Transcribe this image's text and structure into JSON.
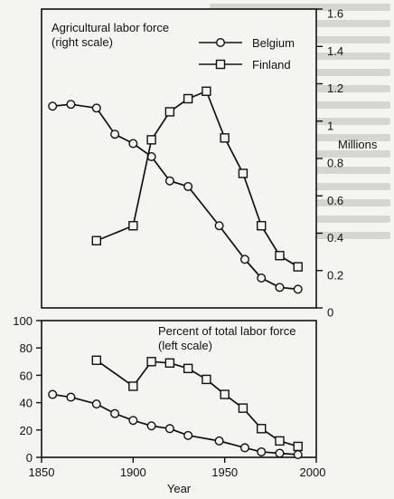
{
  "colors": {
    "ink": "#111111",
    "paper": "#f4f4f1",
    "marker_fill": "#f4f4f1"
  },
  "chart_data": [
    {
      "type": "line",
      "panel": "top",
      "title": "Agricultural labor force",
      "subtitle": "(right scale)",
      "y_unit_label": "Millions",
      "y_axis_side": "right",
      "ylim": [
        0,
        1.6
      ],
      "y_ticks": [
        "0",
        "0.2",
        "0.4",
        "0.6",
        "0.8",
        "1",
        "1.2",
        "1.4",
        "1.6"
      ],
      "legend_position": "top-right",
      "grid": false,
      "series": [
        {
          "name": "Belgium",
          "marker": "circle",
          "x": [
            1856,
            1866,
            1880,
            1890,
            1900,
            1910,
            1920,
            1930,
            1947,
            1961,
            1970,
            1980,
            1990
          ],
          "y": [
            1.08,
            1.09,
            1.07,
            0.93,
            0.88,
            0.81,
            0.68,
            0.65,
            0.44,
            0.26,
            0.16,
            0.11,
            0.1
          ]
        },
        {
          "name": "Finland",
          "marker": "square",
          "x": [
            1880,
            1900,
            1910,
            1920,
            1930,
            1940,
            1950,
            1960,
            1970,
            1980,
            1990
          ],
          "y": [
            0.36,
            0.44,
            0.9,
            1.05,
            1.12,
            1.16,
            0.91,
            0.72,
            0.44,
            0.28,
            0.22
          ]
        }
      ]
    },
    {
      "type": "line",
      "panel": "bottom",
      "title": "Percent of total labor force",
      "subtitle": "(left scale)",
      "y_axis_side": "left",
      "ylim": [
        0,
        100
      ],
      "y_ticks": [
        "0",
        "20",
        "40",
        "60",
        "80",
        "100"
      ],
      "xlabel": "Year",
      "xlim": [
        1850,
        2000
      ],
      "x_ticks": [
        "1850",
        "1900",
        "1950",
        "2000"
      ],
      "grid": false,
      "series": [
        {
          "name": "Belgium",
          "marker": "circle",
          "x": [
            1856,
            1866,
            1880,
            1890,
            1900,
            1910,
            1920,
            1930,
            1947,
            1961,
            1970,
            1980,
            1990
          ],
          "y": [
            46,
            44,
            39,
            32,
            27,
            23,
            21,
            16,
            12,
            7,
            4,
            3,
            2
          ]
        },
        {
          "name": "Finland",
          "marker": "square",
          "x": [
            1880,
            1900,
            1910,
            1920,
            1930,
            1940,
            1950,
            1960,
            1970,
            1980,
            1990
          ],
          "y": [
            71,
            52,
            70,
            69,
            65,
            57,
            46,
            36,
            21,
            12,
            8
          ]
        }
      ]
    }
  ]
}
